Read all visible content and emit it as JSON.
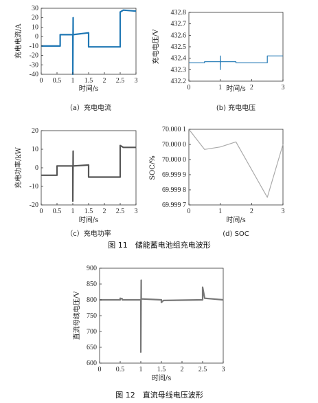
{
  "chart_data": [
    {
      "id": "a",
      "type": "line",
      "caption": "（a）充电电流",
      "xlabel": "时间/s",
      "ylabel": "充电电流/A",
      "xlim": [
        0,
        3
      ],
      "ylim": [
        -40,
        30
      ],
      "xticks": [
        0,
        0.5,
        1,
        1.5,
        2,
        2.5,
        3
      ],
      "yticks": [
        -40,
        -30,
        -20,
        -10,
        0,
        10,
        20,
        30
      ],
      "color": "#1f77b4",
      "grid": false,
      "series": [
        {
          "x": [
            0,
            0.6,
            0.6,
            1.0,
            1.0,
            1.01,
            1.01,
            1.5,
            1.5,
            2.5,
            2.5,
            2.6,
            3.0
          ],
          "y": [
            -10,
            -10,
            2,
            2,
            -40,
            20,
            2,
            4,
            -11,
            -11,
            26,
            28,
            27
          ]
        }
      ]
    },
    {
      "id": "b",
      "type": "line",
      "caption": "(b) 充电电压",
      "xlabel": "时间/s",
      "ylabel": "充电电压/V",
      "xlim": [
        0,
        3
      ],
      "ylim": [
        432.2,
        432.8
      ],
      "xticks": [
        0,
        1,
        2,
        3
      ],
      "yticks": [
        432.2,
        432.3,
        432.4,
        432.5,
        432.6,
        432.7,
        432.8
      ],
      "color": "#1f77b4",
      "grid": false,
      "series": [
        {
          "x": [
            0,
            0.5,
            0.5,
            1.0,
            1.0,
            1.01,
            1.01,
            1.5,
            1.5,
            2.5,
            2.5,
            3.0
          ],
          "y": [
            432.36,
            432.36,
            432.37,
            432.37,
            432.3,
            432.42,
            432.37,
            432.37,
            432.36,
            432.36,
            432.42,
            432.42
          ]
        }
      ]
    },
    {
      "id": "c",
      "type": "line",
      "caption": "（c）充电功率",
      "xlabel": "时间/s",
      "ylabel": "充电功率/kW",
      "xlim": [
        0,
        3
      ],
      "ylim": [
        -20,
        20
      ],
      "xticks": [
        0,
        0.5,
        1,
        1.5,
        2,
        2.5,
        3
      ],
      "yticks": [
        -20,
        -10,
        0,
        10,
        20
      ],
      "color": "#555555",
      "grid": false,
      "series": [
        {
          "x": [
            0,
            0.5,
            0.5,
            1.0,
            1.0,
            1.01,
            1.01,
            1.5,
            1.5,
            2.5,
            2.5,
            2.6,
            3.0
          ],
          "y": [
            -4,
            -4,
            1,
            1,
            -18,
            9,
            1,
            1.5,
            -5,
            -5,
            12,
            11,
            11
          ]
        }
      ]
    },
    {
      "id": "d",
      "type": "line",
      "caption": "(d) SOC",
      "xlabel": "时间/s",
      "ylabel": "SOC/%",
      "xlim": [
        0,
        3
      ],
      "ylim": [
        69.9997,
        70.0
      ],
      "xticks": [
        0,
        1,
        2,
        3
      ],
      "ytick_labels": [
        "70.000 1",
        "70.000 0",
        "70.000 0",
        "69.999 9",
        "69.999 8",
        "69.999 7"
      ],
      "color": "#aaaaaa",
      "grid": false,
      "series": [
        {
          "x": [
            0,
            0.5,
            1.0,
            1.5,
            2.5,
            3.0
          ],
          "y": [
            70.0,
            69.99992,
            69.99993,
            69.99995,
            69.99973,
            69.99994
          ]
        }
      ]
    },
    {
      "id": "bus",
      "type": "line",
      "caption": "",
      "xlabel": "时间/s",
      "ylabel": "直流母线电压/V",
      "xlim": [
        0,
        3
      ],
      "ylim": [
        600,
        900
      ],
      "xticks": [
        0,
        0.5,
        1,
        1.5,
        2,
        2.5,
        3
      ],
      "yticks": [
        600,
        650,
        700,
        750,
        800,
        850,
        900
      ],
      "color": "#777777",
      "grid": false,
      "series": [
        {
          "x": [
            0,
            0.5,
            0.5,
            0.55,
            0.55,
            1.0,
            1.0,
            1.01,
            1.01,
            1.5,
            1.5,
            1.55,
            2.5,
            2.5,
            2.55,
            3.0
          ],
          "y": [
            800,
            800,
            805,
            803,
            800,
            800,
            635,
            862,
            803,
            800,
            792,
            798,
            800,
            840,
            805,
            800
          ]
        }
      ]
    }
  ],
  "figure_captions": {
    "fig11": "图 11　储能蓄电池组充电波形",
    "fig12": "图 12　直流母线电压波形"
  }
}
